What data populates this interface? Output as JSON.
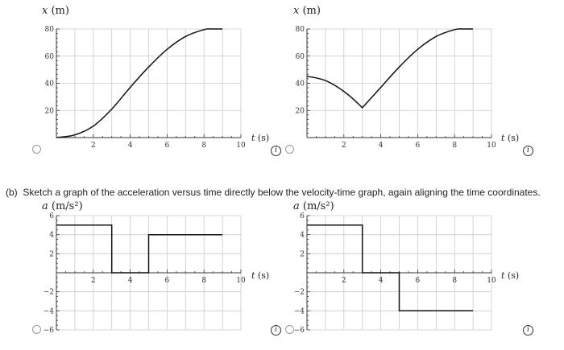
{
  "question_b": {
    "part": "(b)",
    "text": "Sketch a graph of the acceleration versus time directly below the velocity-time graph, again aligning the time coordinates."
  },
  "info_symbol": "i",
  "graphs": [
    {
      "id": "x-left",
      "ylabel_var": "x",
      "ylabel_unit": "(m)",
      "xlabel_var": "t",
      "xlabel_unit": "(s)"
    },
    {
      "id": "x-right",
      "ylabel_var": "x",
      "ylabel_unit": "(m)",
      "xlabel_var": "t",
      "xlabel_unit": "(s)"
    },
    {
      "id": "a-left",
      "ylabel_var": "a",
      "ylabel_unit": "(m/s²)",
      "xlabel_var": "t",
      "xlabel_unit": "(s)"
    },
    {
      "id": "a-right",
      "ylabel_var": "a",
      "ylabel_unit": "(m/s²)",
      "xlabel_var": "t",
      "xlabel_unit": "(s)"
    }
  ],
  "chart_data": [
    {
      "type": "line",
      "xlim": [
        0,
        10
      ],
      "ylim": [
        0,
        80
      ],
      "xticks": [
        2,
        4,
        6,
        8,
        10
      ],
      "yticks": [
        20,
        40,
        60,
        80
      ],
      "grid": true,
      "series": [
        {
          "x": [
            0,
            1,
            2,
            3,
            4,
            5,
            6,
            7,
            8,
            8.5,
            9
          ],
          "y": [
            0,
            2,
            8.5,
            21,
            37,
            52,
            65,
            74.5,
            79.5,
            80,
            80
          ]
        }
      ]
    },
    {
      "type": "line",
      "xlim": [
        0,
        10
      ],
      "ylim": [
        0,
        80
      ],
      "xticks": [
        2,
        4,
        6,
        8,
        10
      ],
      "yticks": [
        20,
        40,
        60,
        80
      ],
      "grid": true,
      "series": [
        {
          "x": [
            0,
            0.5,
            1,
            1.5,
            2,
            2.5,
            3,
            4,
            5,
            6,
            7,
            8,
            8.5,
            9
          ],
          "y": [
            45,
            44,
            42,
            38.5,
            34,
            28.5,
            22,
            37,
            52,
            65,
            74.5,
            79.5,
            80,
            80
          ]
        }
      ]
    },
    {
      "type": "line",
      "xlim": [
        0,
        10
      ],
      "ylim": [
        -6,
        6
      ],
      "xticks": [
        2,
        4,
        6,
        8,
        10
      ],
      "yticks": [
        -6,
        -4,
        -2,
        2,
        4,
        6
      ],
      "grid": true,
      "series": [
        {
          "x": [
            0,
            3,
            3,
            5,
            5,
            9
          ],
          "y": [
            5,
            5,
            0,
            0,
            4,
            4
          ]
        }
      ]
    },
    {
      "type": "line",
      "xlim": [
        0,
        10
      ],
      "ylim": [
        -6,
        6
      ],
      "xticks": [
        2,
        4,
        6,
        8,
        10
      ],
      "yticks": [
        -6,
        -4,
        -2,
        2,
        4,
        6
      ],
      "grid": true,
      "series": [
        {
          "x": [
            0,
            3,
            3,
            5,
            5,
            9
          ],
          "y": [
            5,
            5,
            0,
            0,
            -4,
            -4
          ]
        }
      ]
    }
  ]
}
